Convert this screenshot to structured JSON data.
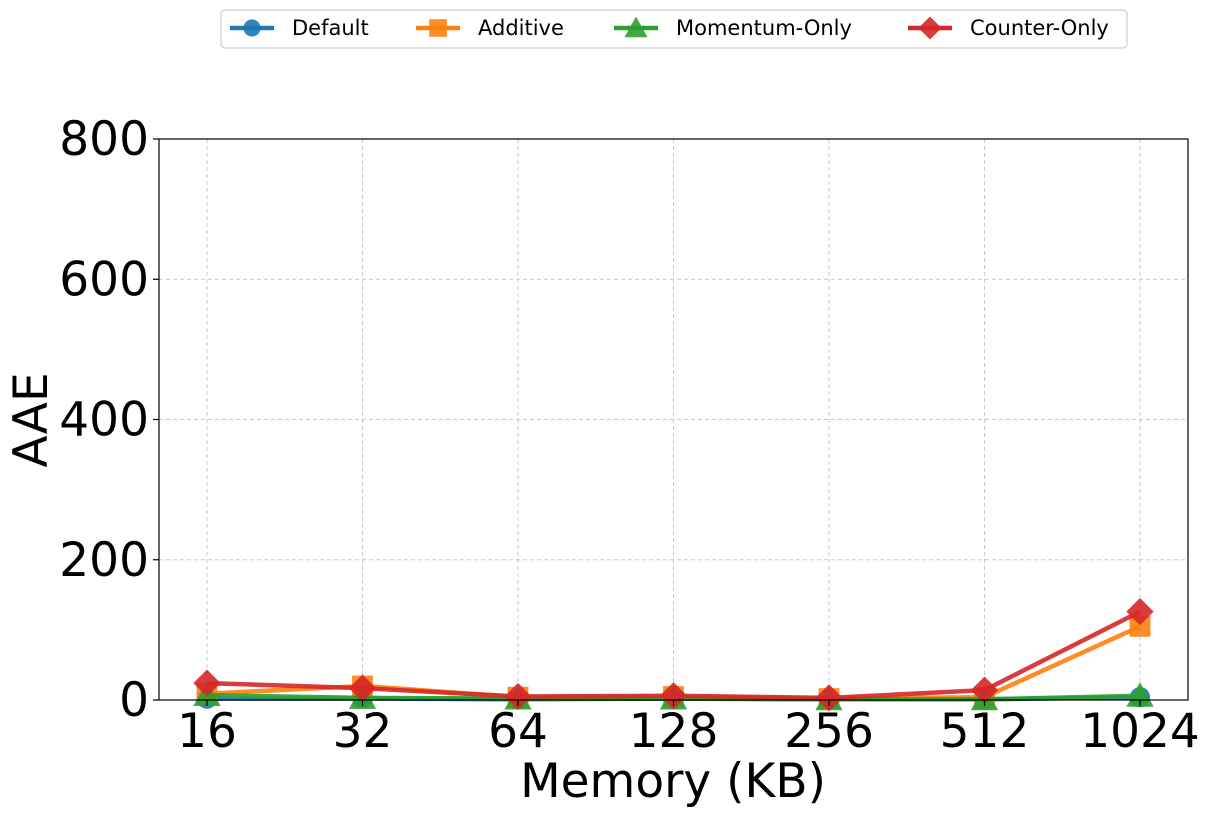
{
  "chart_data": {
    "type": "line",
    "title": "",
    "xlabel": "Memory (KB)",
    "ylabel": "AAE",
    "categories": [
      "16",
      "32",
      "64",
      "128",
      "256",
      "512",
      "1024"
    ],
    "ylim": [
      0,
      800
    ],
    "yticks": [
      0,
      200,
      400,
      600,
      800
    ],
    "grid": true,
    "legend_position": "top-center",
    "series": [
      {
        "name": "Default",
        "color": "#1f77b4",
        "marker": "circle",
        "values": [
          2,
          2,
          1,
          2,
          1,
          1,
          4
        ]
      },
      {
        "name": "Additive",
        "color": "#ff7f0e",
        "marker": "square",
        "values": [
          9,
          20,
          4,
          5,
          2,
          4,
          105
        ]
      },
      {
        "name": "Momentum-Only",
        "color": "#2ca02c",
        "marker": "triangle",
        "values": [
          7,
          3,
          2,
          2,
          1,
          1,
          6
        ]
      },
      {
        "name": "Counter-Only",
        "color": "#d62728",
        "marker": "diamond",
        "values": [
          24,
          17,
          5,
          6,
          3,
          14,
          126
        ]
      }
    ]
  }
}
